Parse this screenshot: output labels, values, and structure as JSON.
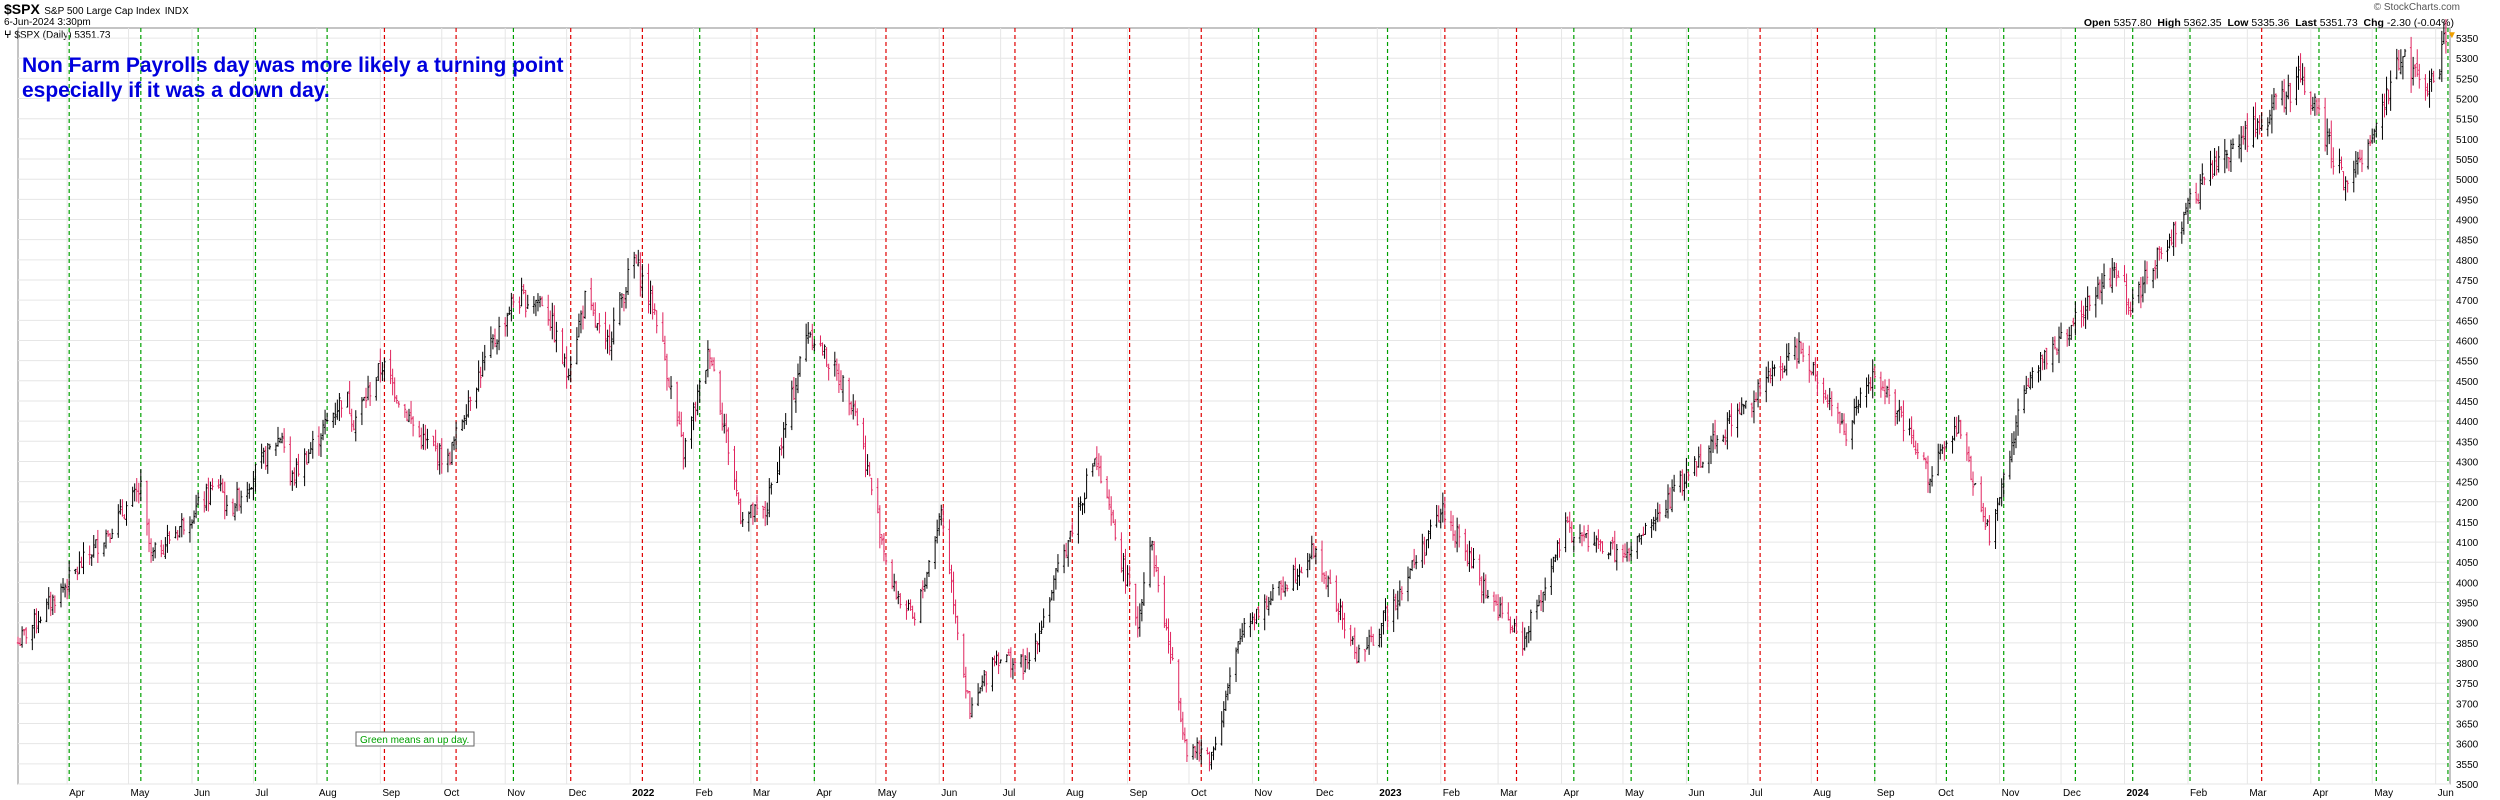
{
  "header": {
    "symbol": "$SPX",
    "name": "S&P 500 Large Cap Index",
    "exchange": "INDX",
    "date": "6-Jun-2024 3:30pm",
    "legend_text": "$SPX (Daily) 5351.73",
    "brand": "© StockCharts.com",
    "open_label": "Open",
    "open": "5357.80",
    "high_label": "High",
    "high": "5362.35",
    "low_label": "Low",
    "low": "5335.36",
    "last_label": "Last",
    "last": "5351.73",
    "chg_label": "Chg",
    "chg": "-2.30 (-0.04%)"
  },
  "annotation": {
    "line1": "Non Farm Payrolls day was more likely a turning point",
    "line2": "especially if it was a down day.",
    "note": "Green means an up day."
  },
  "colors": {
    "up_bar": "#000000",
    "down_bar": "#e0245e",
    "green_line": "#00a000",
    "red_line": "#e00000",
    "annotation_text": "#0000dd",
    "grid": "#e6e6e6",
    "last_marker": "#f0a000"
  },
  "chart_data": {
    "type": "ohlc",
    "title": "$SPX (Daily) 5351.73",
    "ylim": [
      3500,
      5375
    ],
    "y_ticks": [
      3500,
      3550,
      3600,
      3650,
      3700,
      3750,
      3800,
      3850,
      3900,
      3950,
      4000,
      4050,
      4100,
      4150,
      4200,
      4250,
      4300,
      4350,
      4400,
      4450,
      4500,
      4550,
      4600,
      4650,
      4700,
      4750,
      4800,
      4850,
      4900,
      4950,
      5000,
      5050,
      5100,
      5150,
      5200,
      5250,
      5300,
      5350
    ],
    "x_tick_labels": [
      "Apr",
      "May",
      "Jun",
      "Jul",
      "Aug",
      "Sep",
      "Oct",
      "Nov",
      "Dec",
      "2022",
      "Feb",
      "Mar",
      "Apr",
      "May",
      "Jun",
      "Jul",
      "Aug",
      "Sep",
      "Oct",
      "Nov",
      "Dec",
      "2023",
      "Feb",
      "Mar",
      "Apr",
      "May",
      "Jun",
      "Jul",
      "Aug",
      "Sep",
      "Oct",
      "Nov",
      "Dec",
      "2024",
      "Feb",
      "Mar",
      "Apr",
      "May",
      "Jun"
    ],
    "x_tick_dates": [
      "2021-04-01",
      "2021-05-01",
      "2021-06-01",
      "2021-07-01",
      "2021-08-01",
      "2021-09-01",
      "2021-10-01",
      "2021-11-01",
      "2021-12-01",
      "2022-01-01",
      "2022-02-01",
      "2022-03-01",
      "2022-04-01",
      "2022-05-01",
      "2022-06-01",
      "2022-07-01",
      "2022-08-01",
      "2022-09-01",
      "2022-10-01",
      "2022-11-01",
      "2022-12-01",
      "2023-01-01",
      "2023-02-01",
      "2023-03-01",
      "2023-04-01",
      "2023-05-01",
      "2023-06-01",
      "2023-07-01",
      "2023-08-01",
      "2023-09-01",
      "2023-10-01",
      "2023-11-01",
      "2023-12-01",
      "2024-01-01",
      "2024-02-01",
      "2024-03-01",
      "2024-04-01",
      "2024-05-01",
      "2024-06-01"
    ],
    "x_range": [
      "2021-03-08",
      "2024-06-08"
    ],
    "bold_ticks": [
      "2022",
      "2023",
      "2024"
    ],
    "price_path": [
      [
        "2021-03-08",
        3850
      ],
      [
        "2021-04-01",
        4000
      ],
      [
        "2021-05-07",
        4230
      ],
      [
        "2021-05-12",
        4060
      ],
      [
        "2021-06-15",
        4250
      ],
      [
        "2021-06-18",
        4170
      ],
      [
        "2021-07-15",
        4370
      ],
      [
        "2021-07-19",
        4250
      ],
      [
        "2021-08-15",
        4470
      ],
      [
        "2021-08-19",
        4400
      ],
      [
        "2021-09-02",
        4540
      ],
      [
        "2021-09-20",
        4360
      ],
      [
        "2021-10-04",
        4300
      ],
      [
        "2021-10-15",
        4470
      ],
      [
        "2021-11-05",
        4700
      ],
      [
        "2021-11-20",
        4700
      ],
      [
        "2021-12-01",
        4520
      ],
      [
        "2021-12-10",
        4700
      ],
      [
        "2021-12-20",
        4580
      ],
      [
        "2022-01-03",
        4800
      ],
      [
        "2022-01-14",
        4660
      ],
      [
        "2022-01-27",
        4320
      ],
      [
        "2022-02-09",
        4580
      ],
      [
        "2022-02-24",
        4170
      ],
      [
        "2022-03-08",
        4170
      ],
      [
        "2022-03-29",
        4630
      ],
      [
        "2022-04-20",
        4450
      ],
      [
        "2022-05-09",
        3990
      ],
      [
        "2022-05-20",
        3900
      ],
      [
        "2022-06-02",
        4180
      ],
      [
        "2022-06-16",
        3670
      ],
      [
        "2022-06-28",
        3820
      ],
      [
        "2022-07-14",
        3790
      ],
      [
        "2022-08-16",
        4310
      ],
      [
        "2022-09-06",
        3900
      ],
      [
        "2022-09-12",
        4110
      ],
      [
        "2022-09-30",
        3590
      ],
      [
        "2022-10-12",
        3570
      ],
      [
        "2022-10-28",
        3900
      ],
      [
        "2022-11-10",
        3960
      ],
      [
        "2022-12-01",
        4080
      ],
      [
        "2022-12-22",
        3820
      ],
      [
        "2022-12-29",
        3850
      ],
      [
        "2023-02-02",
        4180
      ],
      [
        "2023-02-24",
        3970
      ],
      [
        "2023-03-13",
        3850
      ],
      [
        "2023-04-03",
        4130
      ],
      [
        "2023-05-03",
        4060
      ],
      [
        "2023-06-12",
        4340
      ],
      [
        "2023-07-27",
        4590
      ],
      [
        "2023-08-18",
        4370
      ],
      [
        "2023-09-01",
        4520
      ],
      [
        "2023-09-27",
        4270
      ],
      [
        "2023-10-12",
        4380
      ],
      [
        "2023-10-27",
        4110
      ],
      [
        "2023-11-14",
        4500
      ],
      [
        "2023-12-28",
        4780
      ],
      [
        "2024-01-04",
        4690
      ],
      [
        "2024-02-12",
        5020
      ],
      [
        "2024-03-28",
        5250
      ],
      [
        "2024-04-19",
        4970
      ],
      [
        "2024-05-15",
        5300
      ],
      [
        "2024-05-31",
        5230
      ],
      [
        "2024-06-06",
        5352
      ]
    ],
    "nfp_days": [
      {
        "date": "2021-04-02",
        "up": true
      },
      {
        "date": "2021-05-07",
        "up": true
      },
      {
        "date": "2021-06-04",
        "up": true
      },
      {
        "date": "2021-07-02",
        "up": true
      },
      {
        "date": "2021-08-06",
        "up": true
      },
      {
        "date": "2021-09-03",
        "up": false
      },
      {
        "date": "2021-10-08",
        "up": false
      },
      {
        "date": "2021-11-05",
        "up": true
      },
      {
        "date": "2021-12-03",
        "up": false
      },
      {
        "date": "2022-01-07",
        "up": false
      },
      {
        "date": "2022-02-04",
        "up": true
      },
      {
        "date": "2022-03-04",
        "up": false
      },
      {
        "date": "2022-04-01",
        "up": true
      },
      {
        "date": "2022-05-06",
        "up": false
      },
      {
        "date": "2022-06-03",
        "up": false
      },
      {
        "date": "2022-07-08",
        "up": false
      },
      {
        "date": "2022-08-05",
        "up": false
      },
      {
        "date": "2022-09-02",
        "up": false
      },
      {
        "date": "2022-10-07",
        "up": false
      },
      {
        "date": "2022-11-04",
        "up": true
      },
      {
        "date": "2022-12-02",
        "up": false
      },
      {
        "date": "2023-01-06",
        "up": true
      },
      {
        "date": "2023-02-03",
        "up": false
      },
      {
        "date": "2023-03-10",
        "up": false
      },
      {
        "date": "2023-04-07",
        "up": true
      },
      {
        "date": "2023-05-05",
        "up": true
      },
      {
        "date": "2023-06-02",
        "up": true
      },
      {
        "date": "2023-07-07",
        "up": false
      },
      {
        "date": "2023-08-04",
        "up": false
      },
      {
        "date": "2023-09-01",
        "up": true
      },
      {
        "date": "2023-10-06",
        "up": true
      },
      {
        "date": "2023-11-03",
        "up": true
      },
      {
        "date": "2023-12-08",
        "up": true
      },
      {
        "date": "2024-01-05",
        "up": true
      },
      {
        "date": "2024-02-02",
        "up": true
      },
      {
        "date": "2024-03-08",
        "up": false
      },
      {
        "date": "2024-04-05",
        "up": true
      },
      {
        "date": "2024-05-03",
        "up": true
      },
      {
        "date": "2024-06-07",
        "up": true
      }
    ]
  }
}
